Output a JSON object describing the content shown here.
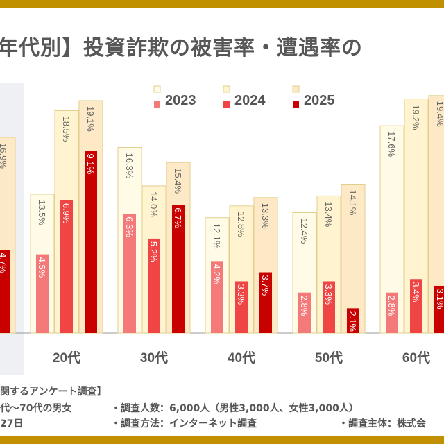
{
  "title": "年代別】投資詐欺の被害率・遭遇率の",
  "colors": {
    "gold": "#c09000",
    "enc_2023": "#fffbe6",
    "enc_2024": "#fff4cf",
    "enc_2025": "#fde9c6",
    "enc_border": "#e2cf8e",
    "vic_2023": "#f47a7a",
    "vic_2024": "#f04545",
    "vic_2025": "#c80000"
  },
  "chart_data": {
    "type": "bar",
    "legend": [
      "2023",
      "2024",
      "2025"
    ],
    "legend_position": "top",
    "categories": [
      "",
      "20代",
      "30代",
      "40代",
      "50代",
      "60代"
    ],
    "series": [
      {
        "name": "2023",
        "encounter": [
          null,
          13.5,
          16.3,
          12.1,
          12.4,
          17.6
        ],
        "victim": [
          null,
          4.5,
          6.3,
          4.2,
          2.8,
          2.8
        ]
      },
      {
        "name": "2024",
        "encounter": [
          null,
          18.5,
          14.0,
          12.8,
          13.4,
          19.2
        ],
        "victim": [
          null,
          6.9,
          5.2,
          3.3,
          3.3,
          3.4
        ]
      },
      {
        "name": "2025",
        "encounter": [
          16.9,
          19.1,
          15.4,
          13.3,
          14.1,
          19.4
        ],
        "victim": [
          4.7,
          9.1,
          6.7,
          3.7,
          2.1,
          3.1
        ]
      }
    ],
    "unit": "%",
    "grid": false
  },
  "footer": {
    "line1": "関するアンケート調査】",
    "line2a": "代～70代の男女",
    "line2b": "・調査人数：6,000人（男性3,000人、女性3,000人）",
    "line3a": "27日",
    "line3b": "・調査方法：インターネット調査",
    "line3c": "・調査主体：株式会"
  }
}
